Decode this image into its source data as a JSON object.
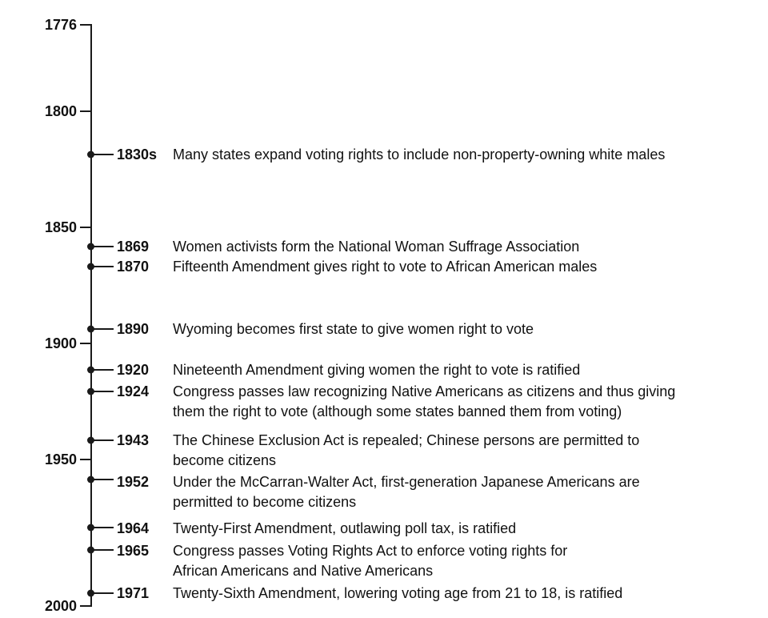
{
  "axis": {
    "ticks": [
      "1776",
      "1800",
      "1850",
      "1900",
      "1950",
      "2000"
    ]
  },
  "events": [
    {
      "year": "1830s",
      "lines": [
        "Many states expand voting rights to include non-property-owning white males"
      ]
    },
    {
      "year": "1869",
      "lines": [
        "Women activists form the National Woman Suffrage Association"
      ]
    },
    {
      "year": "1870",
      "lines": [
        "Fifteenth Amendment gives right to vote to African American males"
      ]
    },
    {
      "year": "1890",
      "lines": [
        "Wyoming becomes first state to give women right to vote"
      ]
    },
    {
      "year": "1920",
      "lines": [
        "Nineteenth Amendment giving women the right to vote is ratified"
      ]
    },
    {
      "year": "1924",
      "lines": [
        "Congress passes law recognizing Native Americans as citizens and thus giving",
        "them the right to vote (although some states banned them from voting)"
      ]
    },
    {
      "year": "1943",
      "lines": [
        "The Chinese Exclusion Act is repealed; Chinese persons are permitted to",
        "become citizens"
      ]
    },
    {
      "year": "1952",
      "lines": [
        "Under the McCarran-Walter Act, first-generation Japanese Americans are",
        "permitted to become citizens"
      ]
    },
    {
      "year": "1964",
      "lines": [
        "Twenty-First Amendment, outlawing poll tax, is ratified"
      ]
    },
    {
      "year": "1965",
      "lines": [
        "Congress passes Voting Rights Act to enforce voting rights for",
        "African Americans and Native Americans"
      ]
    },
    {
      "year": "1971",
      "lines": [
        "Twenty-Sixth Amendment, lowering voting age from 21 to 18, is ratified"
      ]
    }
  ]
}
